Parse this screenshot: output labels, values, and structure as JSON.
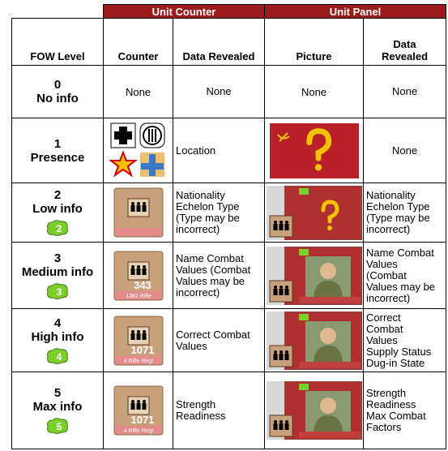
{
  "header": {
    "groups": [
      "Unit Counter",
      "Unit Panel"
    ],
    "columns": [
      "FOW Level",
      "Counter",
      "Data Revealed",
      "Picture",
      [
        "Data",
        "Revealed"
      ]
    ]
  },
  "rows": [
    {
      "level": "0",
      "name": "No info",
      "counter": "None",
      "counter_data": [
        "None"
      ],
      "picture": "None",
      "panel_data": [
        "None"
      ]
    },
    {
      "level": "1",
      "name": "Presence",
      "counter_data": [
        "Location"
      ],
      "panel_data": [
        "None"
      ]
    },
    {
      "level": "2",
      "name": "Low info",
      "badge": "2",
      "counter_data": [
        "Nationality",
        "Echelon Type",
        "(Type may be",
        "incorrect)"
      ],
      "panel_data": [
        "Nationality",
        "Echelon Type",
        "(Type may be",
        "incorrect)"
      ]
    },
    {
      "level": "3",
      "name": "Medium info",
      "badge": "3",
      "counter_number": "343",
      "counter_unit": "1362 Rifle",
      "counter_data": [
        "Name Combat",
        "Values (Combat",
        "Values may be",
        "incorrect)"
      ],
      "panel_data": [
        "Name Combat",
        "Values",
        "(Combat",
        "Values may be",
        "incorrect)"
      ]
    },
    {
      "level": "4",
      "name": "High info",
      "badge": "4",
      "counter_number": "1071",
      "counter_unit": "4 Rifle Regt",
      "counter_data": [
        "Correct Combat",
        "Values"
      ],
      "panel_data": [
        "Correct",
        "Combat",
        "Values",
        "Supply Status",
        "Dug-in State"
      ]
    },
    {
      "level": "5",
      "name": "Max info",
      "badge": "5",
      "counter_number": "1071",
      "counter_unit": "4 Rifle Regt",
      "counter_data": [
        "Strength",
        "Readiness"
      ],
      "panel_data": [
        "Strength",
        "Readiness",
        "Max Combat",
        "Factors"
      ]
    }
  ]
}
